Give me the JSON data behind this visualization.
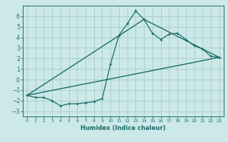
{
  "xlabel": "Humidex (Indice chaleur)",
  "background_color": "#cce8e8",
  "grid_color": "#aacfcf",
  "line_color": "#1a6b6b",
  "xlim": [
    -0.5,
    23.5
  ],
  "ylim": [
    -3.5,
    7.0
  ],
  "xticks": [
    0,
    1,
    2,
    3,
    4,
    5,
    6,
    7,
    8,
    9,
    10,
    11,
    12,
    13,
    14,
    15,
    16,
    17,
    18,
    19,
    20,
    21,
    22,
    23
  ],
  "yticks": [
    -3,
    -2,
    -1,
    0,
    1,
    2,
    3,
    4,
    5,
    6
  ],
  "series1_x": [
    0,
    1,
    2,
    3,
    4,
    5,
    6,
    7,
    8,
    9,
    10,
    11,
    12,
    13,
    14,
    15,
    16,
    17,
    18,
    19,
    20,
    21,
    22,
    23
  ],
  "series1_y": [
    -1.5,
    -1.7,
    -1.7,
    -2.0,
    -2.5,
    -2.3,
    -2.3,
    -2.2,
    -2.1,
    -1.8,
    1.5,
    4.2,
    5.3,
    6.5,
    5.7,
    4.4,
    3.8,
    4.3,
    4.4,
    3.8,
    3.2,
    2.9,
    2.2,
    2.1
  ],
  "series2_x": [
    0,
    23
  ],
  "series2_y": [
    -1.5,
    2.1
  ],
  "series3_x": [
    0,
    14,
    23
  ],
  "series3_y": [
    -1.5,
    5.7,
    2.1
  ]
}
